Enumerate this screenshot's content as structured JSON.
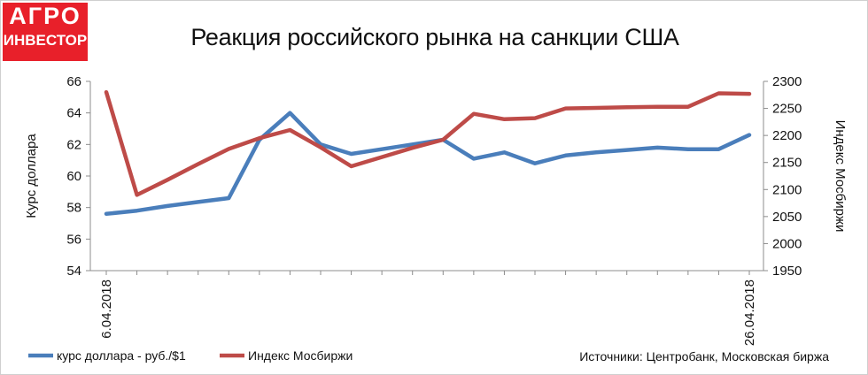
{
  "brand": {
    "line1": "АГРО",
    "line2": "ИНВЕСТОР",
    "color": "#e8202a"
  },
  "source_note": "Источники: Центробанк, Московская биржа",
  "chart_data": {
    "type": "line",
    "title": "Реакция российского рынка на санкции США",
    "x": [
      "6.04.2018",
      "",
      "",
      "",
      "",
      "",
      "",
      "",
      "",
      "",
      "",
      "",
      "",
      "",
      "",
      "",
      "",
      "",
      "",
      "",
      "",
      "26.04.2018"
    ],
    "x_tick_labels": [
      "6.04.2018",
      "26.04.2018"
    ],
    "ylabel": "Курс доллара",
    "ylim": [
      54,
      66
    ],
    "y_ticks": [
      54,
      56,
      58,
      60,
      62,
      64,
      66
    ],
    "y2label": "Индекс Мосбиржи",
    "y2lim": [
      1950,
      2300
    ],
    "y2_ticks": [
      1950,
      2000,
      2050,
      2100,
      2150,
      2200,
      2250,
      2300
    ],
    "grid": false,
    "legend_position": "bottom-left",
    "series": [
      {
        "name": "курс доллара - руб./$1",
        "axis": "left",
        "color": "#4a7ebb",
        "values": [
          57.6,
          57.8,
          58.1,
          58.35,
          58.6,
          62.3,
          64.0,
          62.0,
          61.4,
          61.7,
          62.0,
          62.3,
          61.1,
          61.5,
          60.8,
          61.3,
          61.5,
          61.65,
          61.8,
          61.7,
          61.7,
          62.6
        ]
      },
      {
        "name": "Индекс Мосбиржи",
        "axis": "right",
        "color": "#be4b48",
        "values": [
          2280,
          2090,
          2118,
          2147,
          2175,
          2195,
          2210,
          2178,
          2143,
          2160,
          2177,
          2192,
          2240,
          2230,
          2232,
          2250,
          2251,
          2252,
          2253,
          2253,
          2278,
          2277
        ]
      }
    ]
  }
}
